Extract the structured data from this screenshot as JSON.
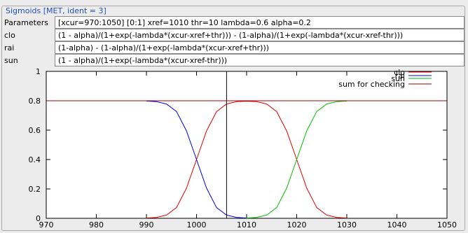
{
  "window": {
    "group_title": "Sigmoids [MET, ident = 3]"
  },
  "fields": [
    {
      "label": "Parameters",
      "value": "[xcur=970:1050] [0:1] xref=1010 thr=10 lambda=0.6 alpha=0.2"
    },
    {
      "label": "clo",
      "value": "(1 - alpha)/(1+exp(-lambda*(xcur-xref+thr))) - (1-alpha)/(1+exp(-lambda*(xcur-xref-thr)))"
    },
    {
      "label": "rai",
      "value": "(1-alpha) - (1-alpha)/(1+exp(-lambda*(xcur-xref+thr)))"
    },
    {
      "label": "sun",
      "value": "(1 - alpha)/(1+exp(-lambda*(xcur-xref-thr)))"
    }
  ],
  "colors": {
    "clo": "#e00000",
    "rai": "#0000e0",
    "sun": "#00c000",
    "sum": "#a00000",
    "title": "#2350c8"
  },
  "chart_data": {
    "type": "line",
    "xlim": [
      970,
      1050
    ],
    "ylim": [
      0,
      1
    ],
    "xticks": [
      970,
      980,
      990,
      1000,
      1010,
      1020,
      1030,
      1040,
      1050
    ],
    "yticks": [
      0,
      0.2,
      0.4,
      0.6,
      0.8,
      1
    ],
    "xtick_labels": [
      "970",
      "980",
      "990",
      "1000",
      "1010",
      "1020",
      "1030",
      "1040",
      "1050"
    ],
    "ytick_labels": [
      "0",
      "0.2",
      "0.4",
      "0.6",
      "0.8",
      "1"
    ],
    "vertical_marker_x": 1006,
    "legend_position": "top-right",
    "series": [
      {
        "name": "clo",
        "x": [
          990,
          992,
          994,
          996,
          998,
          1000,
          1002,
          1004,
          1006,
          1008,
          1010,
          1012,
          1014,
          1016,
          1018,
          1020,
          1022,
          1024,
          1026,
          1028,
          1030
        ],
        "y": [
          0.002,
          0.006,
          0.022,
          0.073,
          0.205,
          0.4,
          0.595,
          0.726,
          0.778,
          0.794,
          0.797,
          0.794,
          0.778,
          0.726,
          0.595,
          0.4,
          0.205,
          0.073,
          0.022,
          0.006,
          0.002
        ]
      },
      {
        "name": "rai",
        "x": [
          990,
          992,
          994,
          996,
          998,
          1000,
          1002,
          1004,
          1006,
          1008,
          1010
        ],
        "y": [
          0.798,
          0.794,
          0.778,
          0.727,
          0.595,
          0.4,
          0.205,
          0.073,
          0.022,
          0.006,
          0.002
        ]
      },
      {
        "name": "sun",
        "x": [
          1010,
          1012,
          1014,
          1016,
          1018,
          1020,
          1022,
          1024,
          1026,
          1028,
          1030
        ],
        "y": [
          0.002,
          0.006,
          0.022,
          0.073,
          0.205,
          0.4,
          0.595,
          0.727,
          0.778,
          0.794,
          0.798
        ]
      },
      {
        "name": "sum for checking",
        "x": [
          970,
          1050
        ],
        "y": [
          0.8,
          0.8
        ]
      }
    ]
  }
}
